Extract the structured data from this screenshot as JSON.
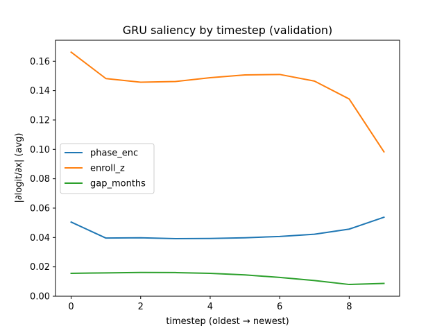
{
  "chart_data": {
    "type": "line",
    "title": "GRU saliency by timestep (validation)",
    "xlabel": "timestep (oldest → newest)",
    "ylabel": "|∂logit/∂x| (avg)",
    "x": [
      0,
      1,
      2,
      3,
      4,
      5,
      6,
      7,
      8,
      9
    ],
    "xlim": [
      -0.45,
      9.45
    ],
    "ylim": [
      0.0,
      0.1743
    ],
    "xticks": [
      0,
      2,
      4,
      6,
      8
    ],
    "yticks": [
      0.0,
      0.02,
      0.04,
      0.06,
      0.08,
      0.1,
      0.12,
      0.14,
      0.16
    ],
    "ytick_labels": [
      "0.00",
      "0.02",
      "0.04",
      "0.06",
      "0.08",
      "0.10",
      "0.12",
      "0.14",
      "0.16"
    ],
    "grid": false,
    "legend_position": "center-left",
    "series": [
      {
        "name": "phase_enc",
        "color": "#1f77b4",
        "values": [
          0.0505,
          0.0396,
          0.0398,
          0.0392,
          0.0393,
          0.0398,
          0.0407,
          0.0422,
          0.0457,
          0.0538
        ]
      },
      {
        "name": "enroll_z",
        "color": "#ff7f0e",
        "values": [
          0.1662,
          0.1482,
          0.1457,
          0.1462,
          0.1488,
          0.1507,
          0.151,
          0.1465,
          0.1343,
          0.0983
        ]
      },
      {
        "name": "gap_months",
        "color": "#2ca02c",
        "values": [
          0.0156,
          0.0159,
          0.0162,
          0.0161,
          0.0156,
          0.0145,
          0.0128,
          0.0107,
          0.008,
          0.0087
        ]
      }
    ]
  }
}
